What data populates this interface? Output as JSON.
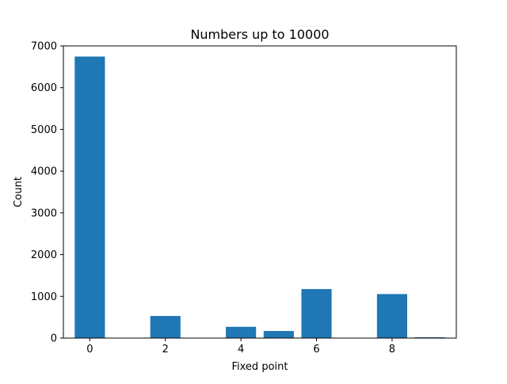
{
  "chart_data": {
    "type": "bar",
    "title": "Numbers up to 10000",
    "xlabel": "Fixed point",
    "ylabel": "Count",
    "categories": [
      0,
      2,
      4,
      5,
      6,
      8,
      9
    ],
    "values": [
      6745,
      530,
      270,
      170,
      1175,
      1055,
      20
    ],
    "xlim": [
      -0.7,
      9.7
    ],
    "ylim": [
      0,
      7000
    ],
    "xticks": [
      0,
      2,
      4,
      6,
      8
    ],
    "xtick_labels": [
      "0",
      "2",
      "4",
      "6",
      "8"
    ],
    "yticks": [
      0,
      1000,
      2000,
      3000,
      4000,
      5000,
      6000,
      7000
    ],
    "ytick_labels": [
      "0",
      "1000",
      "2000",
      "3000",
      "4000",
      "5000",
      "6000",
      "7000"
    ],
    "bar_color": "#1f77b4",
    "grid": false,
    "legend": false
  }
}
